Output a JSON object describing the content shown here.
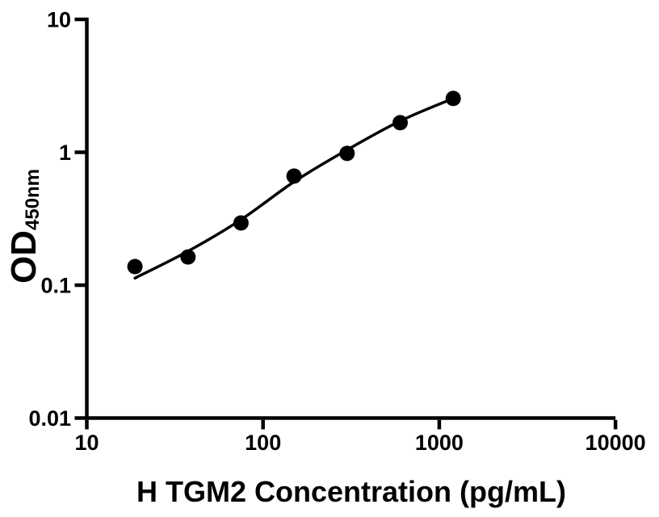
{
  "figure": {
    "background": "#ffffff",
    "foreground": "#000000"
  },
  "chart_data": {
    "type": "scatter",
    "title": "",
    "xlabel": "H TGM2 Concentration (pg/mL)",
    "ylabel_main": "OD",
    "ylabel_sub": "450nm",
    "x_scale": "log",
    "y_scale": "log",
    "xlim": [
      10,
      10000
    ],
    "ylim": [
      0.01,
      10
    ],
    "grid": false,
    "legend": false,
    "x_ticks": [
      {
        "value": 10,
        "label": "10"
      },
      {
        "value": 100,
        "label": "100"
      },
      {
        "value": 1000,
        "label": "1000"
      },
      {
        "value": 10000,
        "label": "10000"
      }
    ],
    "y_ticks": [
      {
        "value": 0.01,
        "label": "0.01"
      },
      {
        "value": 0.1,
        "label": "0.1"
      },
      {
        "value": 1,
        "label": "1"
      },
      {
        "value": 10,
        "label": "10"
      }
    ],
    "series": [
      {
        "name": "standard-points",
        "type": "scatter",
        "marker": "circle",
        "color": "#000000",
        "x": [
          18.75,
          37.5,
          75,
          150,
          300,
          600,
          1200
        ],
        "y": [
          0.138,
          0.163,
          0.294,
          0.662,
          0.98,
          1.67,
          2.54
        ]
      },
      {
        "name": "fit-curve",
        "type": "line",
        "color": "#000000",
        "x": [
          18.75,
          37.5,
          75,
          150,
          300,
          600,
          1200
        ],
        "y": [
          0.113,
          0.18,
          0.311,
          0.6,
          1.043,
          1.72,
          2.54
        ]
      }
    ]
  }
}
